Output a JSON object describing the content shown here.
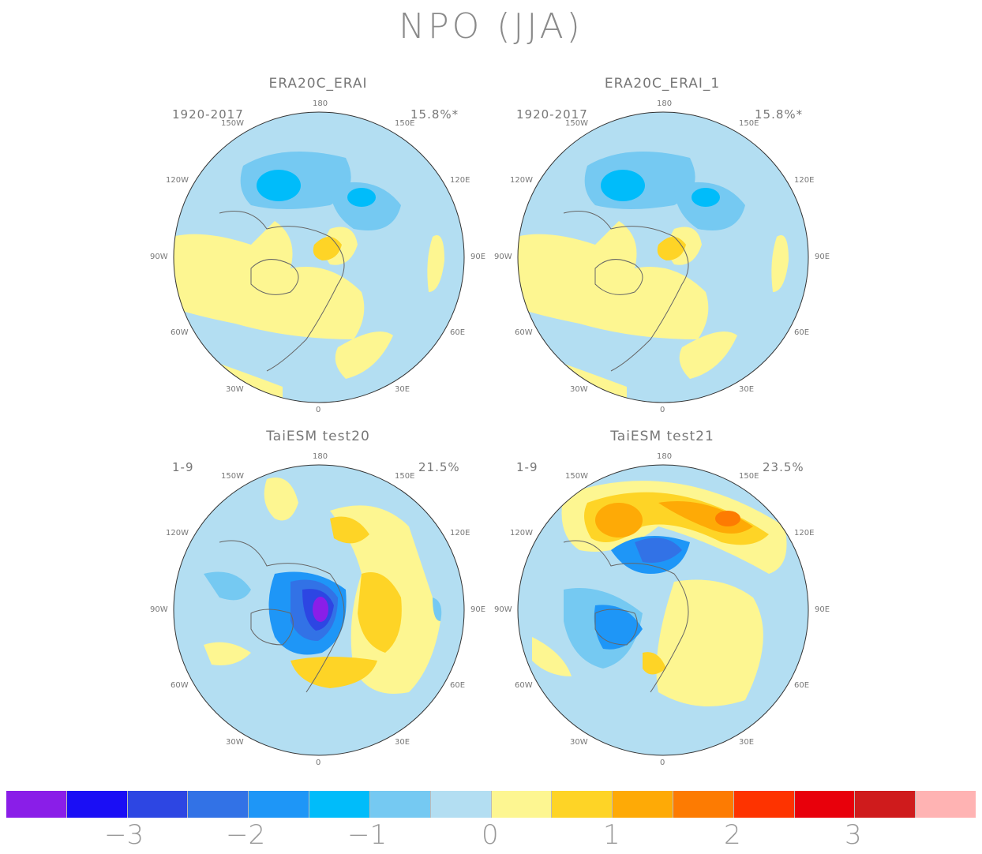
{
  "title": "NPO (JJA)",
  "panels": [
    {
      "title": "ERA20C_ERAI",
      "period": "1920-2017",
      "variance": "15.8%*"
    },
    {
      "title": "ERA20C_ERAI_1",
      "period": "1920-2017",
      "variance": "15.8%*"
    },
    {
      "title": "TaiESM test20",
      "period": "1-9",
      "variance": "21.5%"
    },
    {
      "title": "TaiESM test21",
      "period": "1-9",
      "variance": "23.5%"
    }
  ],
  "lon_labels": {
    "top": "180",
    "bottom": "0",
    "l1": "150W",
    "l2": "120W",
    "l3": "90W",
    "l4": "60W",
    "l5": "30W",
    "r1": "150E",
    "r2": "120E",
    "r3": "90E",
    "r4": "60E",
    "r5": "30E"
  },
  "colorbar": {
    "colors": [
      "#8a1ee8",
      "#1a0ef5",
      "#2d46e3",
      "#3272e6",
      "#1e96f7",
      "#00bcfa",
      "#75c9f2",
      "#b3def2",
      "#fdf691",
      "#fed426",
      "#feaa06",
      "#fd7b02",
      "#fe3300",
      "#e8000b",
      "#cf1b1c",
      "#ffb3b3"
    ],
    "labels": [
      "−3",
      "−2",
      "−1",
      "0",
      "1",
      "2",
      "3"
    ]
  }
}
